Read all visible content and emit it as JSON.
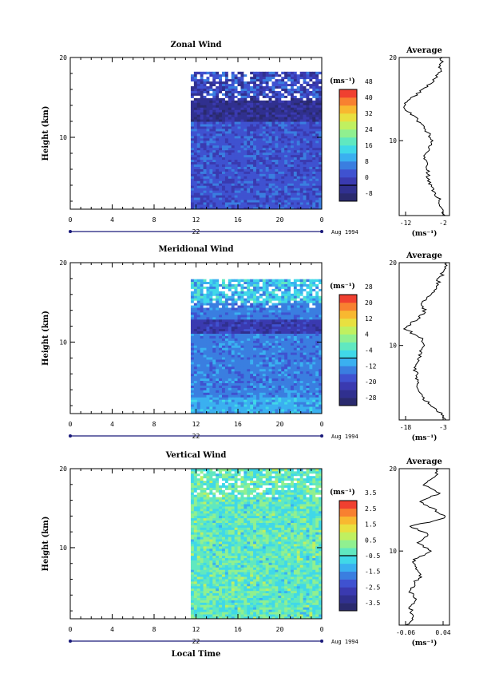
{
  "chart_data": [
    {
      "type": "heatmap",
      "title": "Zonal Wind",
      "ylabel": "Height (km)",
      "ylim": [
        1,
        20
      ],
      "y_ticks": [
        "10",
        "20"
      ],
      "x_ticks": [
        "0",
        "4",
        "8",
        "12",
        "16",
        "20",
        "0"
      ],
      "date_label": "22",
      "month_label": "Aug 1994",
      "data_start_hour": 11.5,
      "colorbar": {
        "unit": "(ms⁻¹)",
        "ticks": [
          "-8",
          "0",
          "8",
          "16",
          "24",
          "32",
          "40",
          "48"
        ],
        "colors": [
          "#2a2a6e",
          "#30308f",
          "#3a3ab0",
          "#3f52d0",
          "#3a7ee0",
          "#3ab0f0",
          "#40d8e8",
          "#60e8c0",
          "#90f090",
          "#c0f060",
          "#e8e040",
          "#f8b830",
          "#f88030",
          "#f04030"
        ]
      },
      "profile": {
        "title": "Average",
        "x_ticks": [
          "-12",
          "-2"
        ],
        "xlabel": "(ms⁻¹)",
        "xlim": [
          -14,
          0
        ],
        "heights": [
          1,
          2,
          3,
          4,
          5,
          6,
          7,
          8,
          9,
          10,
          11,
          12,
          13,
          14,
          15,
          16,
          17,
          18,
          19,
          20
        ],
        "values": [
          -1.5,
          -2,
          -3,
          -4.5,
          -5.5,
          -6,
          -6.5,
          -7,
          -6,
          -4.5,
          -6,
          -8,
          -10,
          -13,
          -11,
          -8,
          -5,
          -3,
          -2.5,
          -2
        ]
      }
    },
    {
      "type": "heatmap",
      "title": "Meridional Wind",
      "ylabel": "Height (km)",
      "ylim": [
        1,
        20
      ],
      "y_ticks": [
        "10",
        "20"
      ],
      "x_ticks": [
        "0",
        "4",
        "8",
        "12",
        "16",
        "20",
        "0"
      ],
      "date_label": "22",
      "month_label": "Aug 1994",
      "data_start_hour": 11.5,
      "colorbar": {
        "unit": "(ms⁻¹)",
        "ticks": [
          "-28",
          "-20",
          "-12",
          "-4",
          "4",
          "12",
          "20",
          "28"
        ],
        "colors": [
          "#2a2a6e",
          "#30308f",
          "#3a3ab0",
          "#3f52d0",
          "#3a7ee0",
          "#3ab0f0",
          "#40d8e8",
          "#60e8c0",
          "#90f090",
          "#c0f060",
          "#e8e040",
          "#f8b830",
          "#f88030",
          "#f04030"
        ]
      },
      "profile": {
        "title": "Average",
        "x_ticks": [
          "-18",
          "-3"
        ],
        "xlabel": "(ms⁻¹)",
        "xlim": [
          -20,
          -1
        ],
        "heights": [
          1,
          2,
          3,
          4,
          5,
          6,
          7,
          8,
          9,
          10,
          11,
          12,
          13,
          14,
          15,
          16,
          17,
          18,
          19,
          20
        ],
        "values": [
          -2,
          -5,
          -9,
          -12,
          -13,
          -13,
          -14,
          -13,
          -12,
          -11,
          -12,
          -18,
          -14,
          -10,
          -12,
          -8,
          -6,
          -5,
          -3,
          -2
        ]
      }
    },
    {
      "type": "heatmap",
      "title": "Vertical Wind",
      "ylabel": "Height (km)",
      "ylim": [
        1,
        20
      ],
      "y_ticks": [
        "10",
        "20"
      ],
      "x_ticks": [
        "0",
        "4",
        "8",
        "12",
        "16",
        "20",
        "0"
      ],
      "date_label": "22",
      "month_label": "Aug 1994",
      "xlabel": "Local Time",
      "data_start_hour": 11.5,
      "colorbar": {
        "unit": "(ms⁻¹)",
        "ticks": [
          "-3.5",
          "-2.5",
          "-1.5",
          "-0.5",
          "0.5",
          "1.5",
          "2.5",
          "3.5"
        ],
        "colors": [
          "#2a2a6e",
          "#30308f",
          "#3a3ab0",
          "#3f52d0",
          "#3a7ee0",
          "#3ab0f0",
          "#40d8e8",
          "#60e8c0",
          "#90f090",
          "#c0f060",
          "#e8e040",
          "#f8b830",
          "#f88030",
          "#f04030"
        ]
      },
      "profile": {
        "title": "Average",
        "x_ticks": [
          "-0.06",
          "0.04"
        ],
        "xlabel": "(ms⁻¹)",
        "xlim": [
          -0.08,
          0.06
        ],
        "heights": [
          1,
          2,
          3,
          4,
          5,
          6,
          7,
          8,
          9,
          10,
          11,
          12,
          13,
          14,
          15,
          16,
          17,
          18,
          19,
          20
        ],
        "values": [
          -0.06,
          -0.04,
          -0.05,
          -0.03,
          -0.05,
          -0.04,
          -0.02,
          -0.03,
          -0.04,
          0.01,
          -0.03,
          0.0,
          -0.05,
          0.05,
          0.02,
          -0.02,
          0.03,
          -0.01,
          0.02,
          0.03
        ]
      }
    }
  ]
}
